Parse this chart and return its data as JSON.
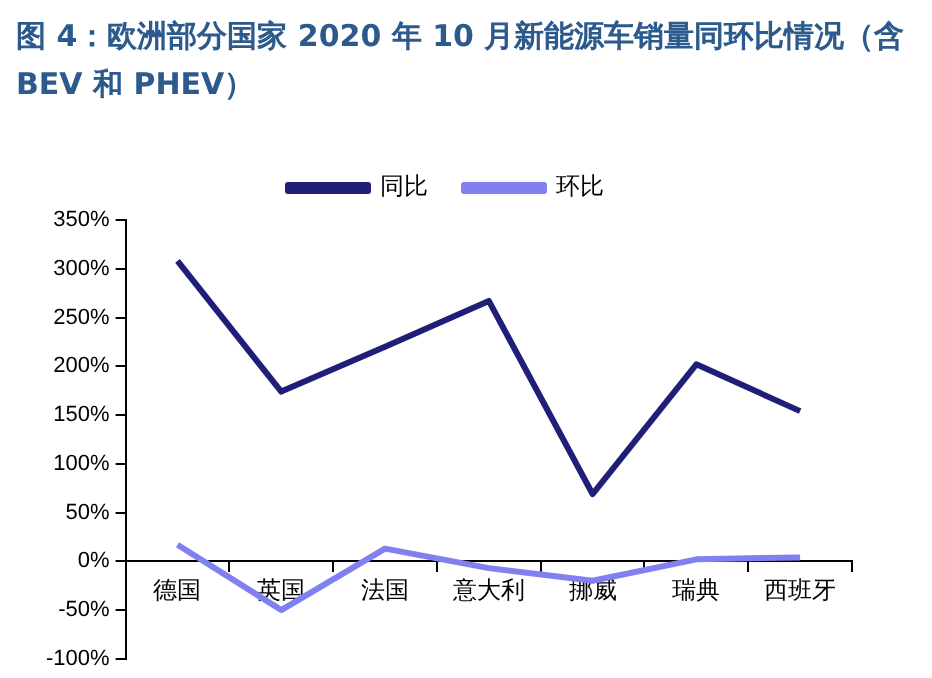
{
  "chart_data": {
    "type": "line",
    "title": "图 4：欧洲部分国家 2020 年 10 月新能源车销量同环比情况（含 BEV 和 PHEV）",
    "categories": [
      "德国",
      "英国",
      "法国",
      "意大利",
      "挪威",
      "瑞典",
      "西班牙"
    ],
    "series": [
      {
        "name": "同比",
        "color": "#1f1f7a",
        "values": [
          308,
          174,
          220,
          267,
          69,
          202,
          154
        ]
      },
      {
        "name": "环比",
        "color": "#8080f0",
        "values": [
          17,
          -50,
          13,
          -7,
          -20,
          2,
          4
        ]
      }
    ],
    "ylim": [
      -100,
      350
    ],
    "yticks": [
      {
        "value": -100,
        "label": "-100%"
      },
      {
        "value": -50,
        "label": "-50%"
      },
      {
        "value": 0,
        "label": "0%"
      },
      {
        "value": 50,
        "label": "50%"
      },
      {
        "value": 100,
        "label": "100%"
      },
      {
        "value": 150,
        "label": "150%"
      },
      {
        "value": 200,
        "label": "200%"
      },
      {
        "value": 250,
        "label": "250%"
      },
      {
        "value": 300,
        "label": "300%"
      },
      {
        "value": 350,
        "label": "350%"
      }
    ],
    "grid": false,
    "legend": "top",
    "marker": "none",
    "line_style": "solid"
  }
}
